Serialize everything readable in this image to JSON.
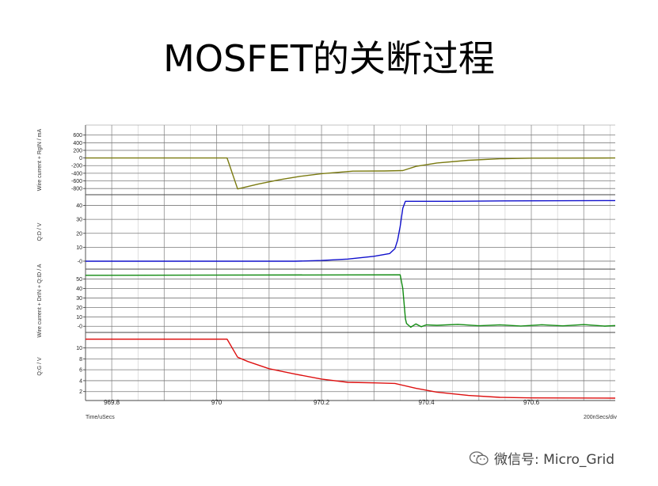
{
  "title": "MOSFET的关断过程",
  "watermark": {
    "text": "微信号: Micro_Grid",
    "icon": "wechat-icon"
  },
  "chart_data": {
    "type": "line",
    "x_unit_label": "Time/uSecs",
    "x_div_label": "200nSecs/div",
    "xlim": [
      969.75,
      970.76
    ],
    "xticks": [
      "969.8",
      "970",
      "970.2",
      "970.4",
      "970.6"
    ],
    "xtick_values": [
      969.8,
      970.0,
      970.2,
      970.4,
      970.6
    ],
    "grid": true,
    "panels": [
      {
        "ylabel": "Wire current  + RgIN / mA",
        "color": "#7a7a10",
        "ylim": [
          -900,
          800
        ],
        "yticks": [
          600,
          400,
          200,
          0,
          -200,
          -400,
          -600,
          -800
        ],
        "ytick_labels": [
          "600",
          "400",
          "200",
          "0",
          "-200",
          "-400",
          "-600",
          "-800"
        ],
        "series": [
          {
            "x": [
              969.75,
              970.02,
              970.04,
              970.08,
              970.12,
              970.16,
              970.2,
              970.26,
              970.32,
              970.355,
              970.38,
              970.42,
              970.48,
              970.54,
              970.6,
              970.76
            ],
            "y": [
              0,
              0,
              -810,
              -680,
              -570,
              -480,
              -410,
              -345,
              -340,
              -330,
              -220,
              -130,
              -60,
              -20,
              -5,
              0
            ]
          }
        ]
      },
      {
        "ylabel": "Q:D / V",
        "color": "#1010cc",
        "ylim": [
          -4,
          46
        ],
        "yticks": [
          40,
          30,
          20,
          10,
          0
        ],
        "ytick_labels": [
          "40",
          "30",
          "20",
          "10",
          "-0"
        ],
        "series": [
          {
            "x": [
              969.75,
              970.15,
              970.2,
              970.25,
              970.3,
              970.33,
              970.34,
              970.345,
              970.35,
              970.355,
              970.36,
              970.45,
              970.55,
              970.76
            ],
            "y": [
              0,
              0,
              0.5,
              1.5,
              3.5,
              5.5,
              9,
              15,
              25,
              38,
              43,
              43,
              43.3,
              43.5
            ]
          }
        ]
      },
      {
        "ylabel": "Wire current  + DrIN + Q:ID / A",
        "color": "#108a10",
        "ylim": [
          -4,
          58
        ],
        "yticks": [
          50,
          40,
          30,
          20,
          10,
          0
        ],
        "ytick_labels": [
          "50",
          "40",
          "30",
          "20",
          "10",
          "-0"
        ],
        "series": [
          {
            "x": [
              969.75,
              970.35,
              970.355,
              970.36,
              970.362,
              970.37,
              970.38,
              970.39,
              970.4,
              970.42,
              970.46,
              970.5,
              970.54,
              970.58,
              970.62,
              970.66,
              970.7,
              970.74,
              970.76
            ],
            "y": [
              54,
              54.5,
              40,
              8,
              3,
              -1,
              2.5,
              -0.5,
              1.5,
              1,
              2,
              0.5,
              1.5,
              0.3,
              1.6,
              0.4,
              1.8,
              0.2,
              0.8
            ]
          }
        ]
      },
      {
        "ylabel": "Q:G / V",
        "color": "#dd1010",
        "ylim": [
          0.8,
          12.4
        ],
        "yticks": [
          10,
          8,
          6,
          4,
          2
        ],
        "ytick_labels": [
          "10",
          "8",
          "6",
          "4",
          "2"
        ],
        "series": [
          {
            "x": [
              969.75,
              970.02,
              970.04,
              970.06,
              970.1,
              970.15,
              970.2,
              970.25,
              970.3,
              970.34,
              970.38,
              970.42,
              970.48,
              970.54,
              970.6,
              970.76
            ],
            "y": [
              11.6,
              11.6,
              8.3,
              7.5,
              6.2,
              5.2,
              4.3,
              3.7,
              3.6,
              3.5,
              2.6,
              1.9,
              1.3,
              0.95,
              0.85,
              0.8
            ]
          }
        ]
      }
    ]
  }
}
